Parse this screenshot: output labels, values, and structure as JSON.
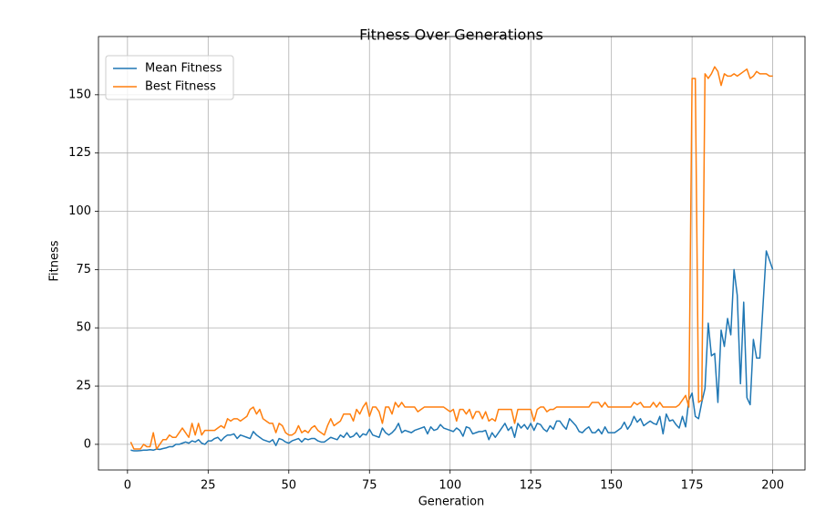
{
  "chart_data": {
    "type": "line",
    "title": "Fitness Over Generations",
    "x_label": "Generation",
    "y_label": "Fitness",
    "x": [
      1,
      2,
      3,
      4,
      5,
      6,
      7,
      8,
      9,
      10,
      11,
      12,
      13,
      14,
      15,
      16,
      17,
      18,
      19,
      20,
      21,
      22,
      23,
      24,
      25,
      26,
      27,
      28,
      29,
      30,
      31,
      32,
      33,
      34,
      35,
      36,
      37,
      38,
      39,
      40,
      41,
      42,
      43,
      44,
      45,
      46,
      47,
      48,
      49,
      50,
      51,
      52,
      53,
      54,
      55,
      56,
      57,
      58,
      59,
      60,
      61,
      62,
      63,
      64,
      65,
      66,
      67,
      68,
      69,
      70,
      71,
      72,
      73,
      74,
      75,
      76,
      77,
      78,
      79,
      80,
      81,
      82,
      83,
      84,
      85,
      86,
      87,
      88,
      89,
      90,
      91,
      92,
      93,
      94,
      95,
      96,
      97,
      98,
      99,
      100,
      101,
      102,
      103,
      104,
      105,
      106,
      107,
      108,
      109,
      110,
      111,
      112,
      113,
      114,
      115,
      116,
      117,
      118,
      119,
      120,
      121,
      122,
      123,
      124,
      125,
      126,
      127,
      128,
      129,
      130,
      131,
      132,
      133,
      134,
      135,
      136,
      137,
      138,
      139,
      140,
      141,
      142,
      143,
      144,
      145,
      146,
      147,
      148,
      149,
      150,
      151,
      152,
      153,
      154,
      155,
      156,
      157,
      158,
      159,
      160,
      161,
      162,
      163,
      164,
      165,
      166,
      167,
      168,
      169,
      170,
      171,
      172,
      173,
      174,
      175,
      176,
      177,
      178,
      179,
      180,
      181,
      182,
      183,
      184,
      185,
      186,
      187,
      188,
      189,
      190,
      191,
      192,
      193,
      194,
      195,
      196,
      197,
      198,
      199,
      200
    ],
    "series": [
      {
        "name": "Mean Fitness",
        "color": "#1f77b4",
        "values": [
          -2.5,
          -2.8,
          -2.8,
          -2.7,
          -2.5,
          -2.5,
          -2.3,
          -2.5,
          -2,
          -2.2,
          -1.8,
          -1.5,
          -1,
          -1,
          0,
          0,
          0.5,
          1,
          0.5,
          1.5,
          1,
          2,
          0.5,
          0,
          1.5,
          1.5,
          2.5,
          3,
          1.5,
          3,
          4,
          4,
          4.5,
          2.5,
          4,
          3.5,
          3,
          2.5,
          5.5,
          4,
          3,
          2,
          1.5,
          1,
          2,
          -0.5,
          2.5,
          2,
          1,
          0.5,
          1.5,
          2,
          2.5,
          1,
          2.5,
          2,
          2.5,
          2.5,
          1.5,
          1,
          1,
          2,
          3,
          2.5,
          2,
          4,
          3,
          5,
          3,
          3.5,
          5,
          3,
          4.5,
          4,
          6.5,
          4,
          3.5,
          3,
          7,
          5,
          4,
          5,
          6.5,
          9,
          5,
          6,
          5.5,
          5,
          6,
          6.5,
          7,
          7.5,
          4.5,
          7.5,
          6,
          6.5,
          8.5,
          7,
          6.5,
          6,
          5.5,
          7,
          6,
          3.5,
          7.5,
          7,
          4.5,
          5,
          5.5,
          5.5,
          6,
          2,
          5,
          3,
          5,
          7,
          9,
          6,
          7.5,
          3,
          9,
          7,
          8.5,
          6.5,
          9,
          6,
          9,
          8.5,
          6.5,
          5.5,
          8,
          6.5,
          10,
          10,
          8,
          6.5,
          11,
          9.5,
          8,
          5.5,
          5,
          6.5,
          7.5,
          5,
          5,
          6.5,
          4.5,
          7.5,
          5,
          5,
          5,
          6,
          7,
          9.5,
          6.5,
          8.5,
          12,
          9.5,
          11,
          8,
          9,
          10,
          9,
          8.5,
          12,
          4.5,
          13,
          10,
          10.5,
          8.5,
          7,
          12,
          7.5,
          19,
          22,
          12,
          11,
          18,
          24,
          52,
          38,
          39,
          18,
          49,
          42,
          54,
          47,
          75,
          64,
          26,
          61,
          20,
          17,
          45,
          37,
          37,
          60,
          83,
          79,
          75
        ]
      },
      {
        "name": "Best Fitness",
        "color": "#ff7f0e",
        "values": [
          1,
          -2,
          -2,
          -2,
          0,
          -1,
          -1,
          5,
          -2,
          0,
          2,
          2,
          4,
          3,
          3,
          5,
          7,
          5,
          3,
          9,
          4,
          9,
          4,
          6,
          6,
          6,
          6,
          7,
          8,
          7,
          11,
          10,
          11,
          11,
          10,
          11,
          12,
          15,
          16,
          13,
          15,
          11,
          10,
          9,
          9,
          5,
          9,
          8,
          5,
          4,
          4,
          5,
          8,
          5,
          6,
          5,
          7,
          8,
          6,
          5,
          4,
          8,
          11,
          8,
          9,
          10,
          13,
          13,
          13,
          10,
          15,
          13,
          16,
          18,
          12,
          16,
          16,
          14,
          9,
          16,
          16,
          13,
          18,
          16,
          18,
          16,
          16,
          16,
          16,
          14,
          15,
          16,
          16,
          16,
          16,
          16,
          16,
          16,
          15,
          14,
          15,
          10,
          15,
          15,
          13,
          15,
          11,
          14,
          14,
          11,
          14,
          10,
          11,
          10,
          15,
          15,
          15,
          15,
          15,
          9,
          15,
          15,
          15,
          15,
          15,
          10,
          15,
          16,
          16,
          14,
          15,
          15,
          16,
          16,
          16,
          16,
          16,
          16,
          16,
          16,
          16,
          16,
          16,
          18,
          18,
          18,
          16,
          18,
          16,
          16,
          16,
          16,
          16,
          16,
          16,
          16,
          18,
          17,
          18,
          16,
          16,
          16,
          18,
          16,
          18,
          16,
          16,
          16,
          16,
          16,
          17,
          19,
          21,
          16,
          157,
          157,
          18,
          19,
          159,
          157,
          159,
          162,
          160,
          154,
          159,
          158,
          158,
          159,
          158,
          159,
          160,
          161,
          157,
          158,
          160,
          159,
          159,
          159,
          158,
          158
        ]
      }
    ],
    "xlim": [
      -9,
      210
    ],
    "ylim": [
      -11,
      175
    ],
    "xticks": [
      0,
      25,
      50,
      75,
      100,
      125,
      150,
      175,
      200
    ],
    "yticks": [
      0,
      25,
      50,
      75,
      100,
      125,
      150
    ],
    "grid": true,
    "legend": "upper left"
  }
}
